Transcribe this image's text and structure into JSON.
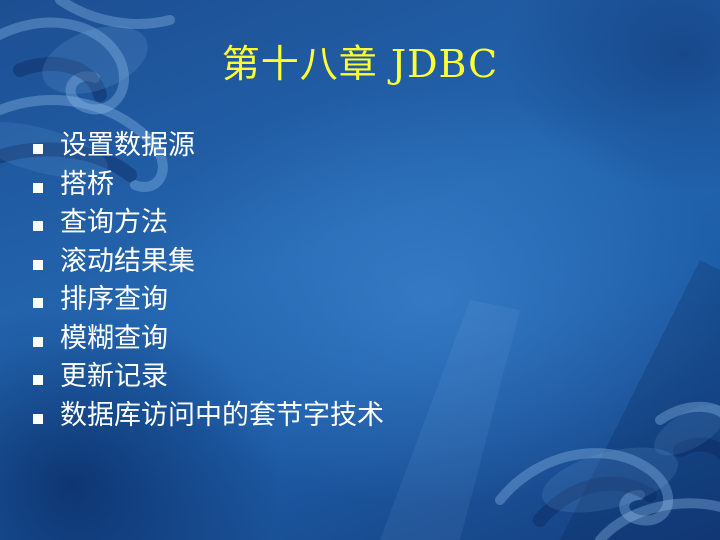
{
  "slide": {
    "title": "第十八章 JDBC",
    "bullet_marker": "square-bullet-icon",
    "items": [
      "设置数据源",
      "搭桥",
      "查询方法",
      "滚动结果集",
      "排序查询",
      "模糊查询",
      "更新记录",
      "数据库访问中的套节字技术"
    ]
  },
  "colors": {
    "background": "#1e5ea8",
    "title": "#ffff33",
    "text": "#ffffff"
  }
}
